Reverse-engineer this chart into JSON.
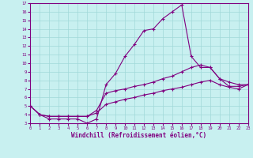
{
  "xlabel": "Windchill (Refroidissement éolien,°C)",
  "bg_color": "#c8f0f0",
  "line_color": "#800080",
  "grid_color": "#a0d8d8",
  "xlim": [
    0,
    23
  ],
  "ylim": [
    3,
    17
  ],
  "xticks": [
    0,
    1,
    2,
    3,
    4,
    5,
    6,
    7,
    8,
    9,
    10,
    11,
    12,
    13,
    14,
    15,
    16,
    17,
    18,
    19,
    20,
    21,
    22,
    23
  ],
  "yticks": [
    3,
    4,
    5,
    6,
    7,
    8,
    9,
    10,
    11,
    12,
    13,
    14,
    15,
    16,
    17
  ],
  "line1_x": [
    0,
    1,
    2,
    3,
    4,
    5,
    6,
    7,
    8,
    9,
    10,
    11,
    12,
    13,
    14,
    15,
    16,
    17,
    18,
    19,
    20,
    21,
    22,
    23
  ],
  "line1_y": [
    5.0,
    4.0,
    3.5,
    3.5,
    3.5,
    3.5,
    3.0,
    3.5,
    7.5,
    8.8,
    10.8,
    12.2,
    13.8,
    14.0,
    15.2,
    16.0,
    16.8,
    10.8,
    9.5,
    9.5,
    8.2,
    7.3,
    7.3,
    7.5
  ],
  "line2_x": [
    0,
    1,
    2,
    3,
    4,
    5,
    6,
    7,
    8,
    9,
    10,
    11,
    12,
    13,
    14,
    15,
    16,
    17,
    18,
    19,
    20,
    21,
    22,
    23
  ],
  "line2_y": [
    5.0,
    4.0,
    3.8,
    3.8,
    3.8,
    3.8,
    3.8,
    4.5,
    6.5,
    6.8,
    7.0,
    7.3,
    7.5,
    7.8,
    8.2,
    8.5,
    9.0,
    9.5,
    9.8,
    9.5,
    8.2,
    7.8,
    7.5,
    7.5
  ],
  "line3_x": [
    0,
    1,
    2,
    3,
    4,
    5,
    6,
    7,
    8,
    9,
    10,
    11,
    12,
    13,
    14,
    15,
    16,
    17,
    18,
    19,
    20,
    21,
    22,
    23
  ],
  "line3_y": [
    5.0,
    4.0,
    3.8,
    3.8,
    3.8,
    3.8,
    3.8,
    4.2,
    5.2,
    5.5,
    5.8,
    6.0,
    6.3,
    6.5,
    6.8,
    7.0,
    7.2,
    7.5,
    7.8,
    8.0,
    7.5,
    7.2,
    7.0,
    7.5
  ]
}
